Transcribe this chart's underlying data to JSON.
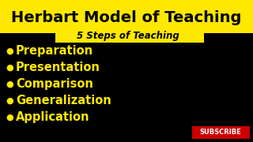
{
  "background_color": "#000000",
  "title_bg_color": "#FFE800",
  "title_text": "Herbart Model of Teaching",
  "title_color": "#000000",
  "subtitle_text": "5 Steps of Teaching",
  "subtitle_color": "#000000",
  "subtitle_bg_color": "#FFE800",
  "bullet_color": "#FFE800",
  "bullet_items": [
    "Preparation",
    "Presentation",
    "Comparison",
    "Generalization",
    "Application"
  ],
  "subscribe_bg": "#cc0000",
  "subscribe_text": "SUBSCRIBE",
  "subscribe_color": "#ffffff"
}
